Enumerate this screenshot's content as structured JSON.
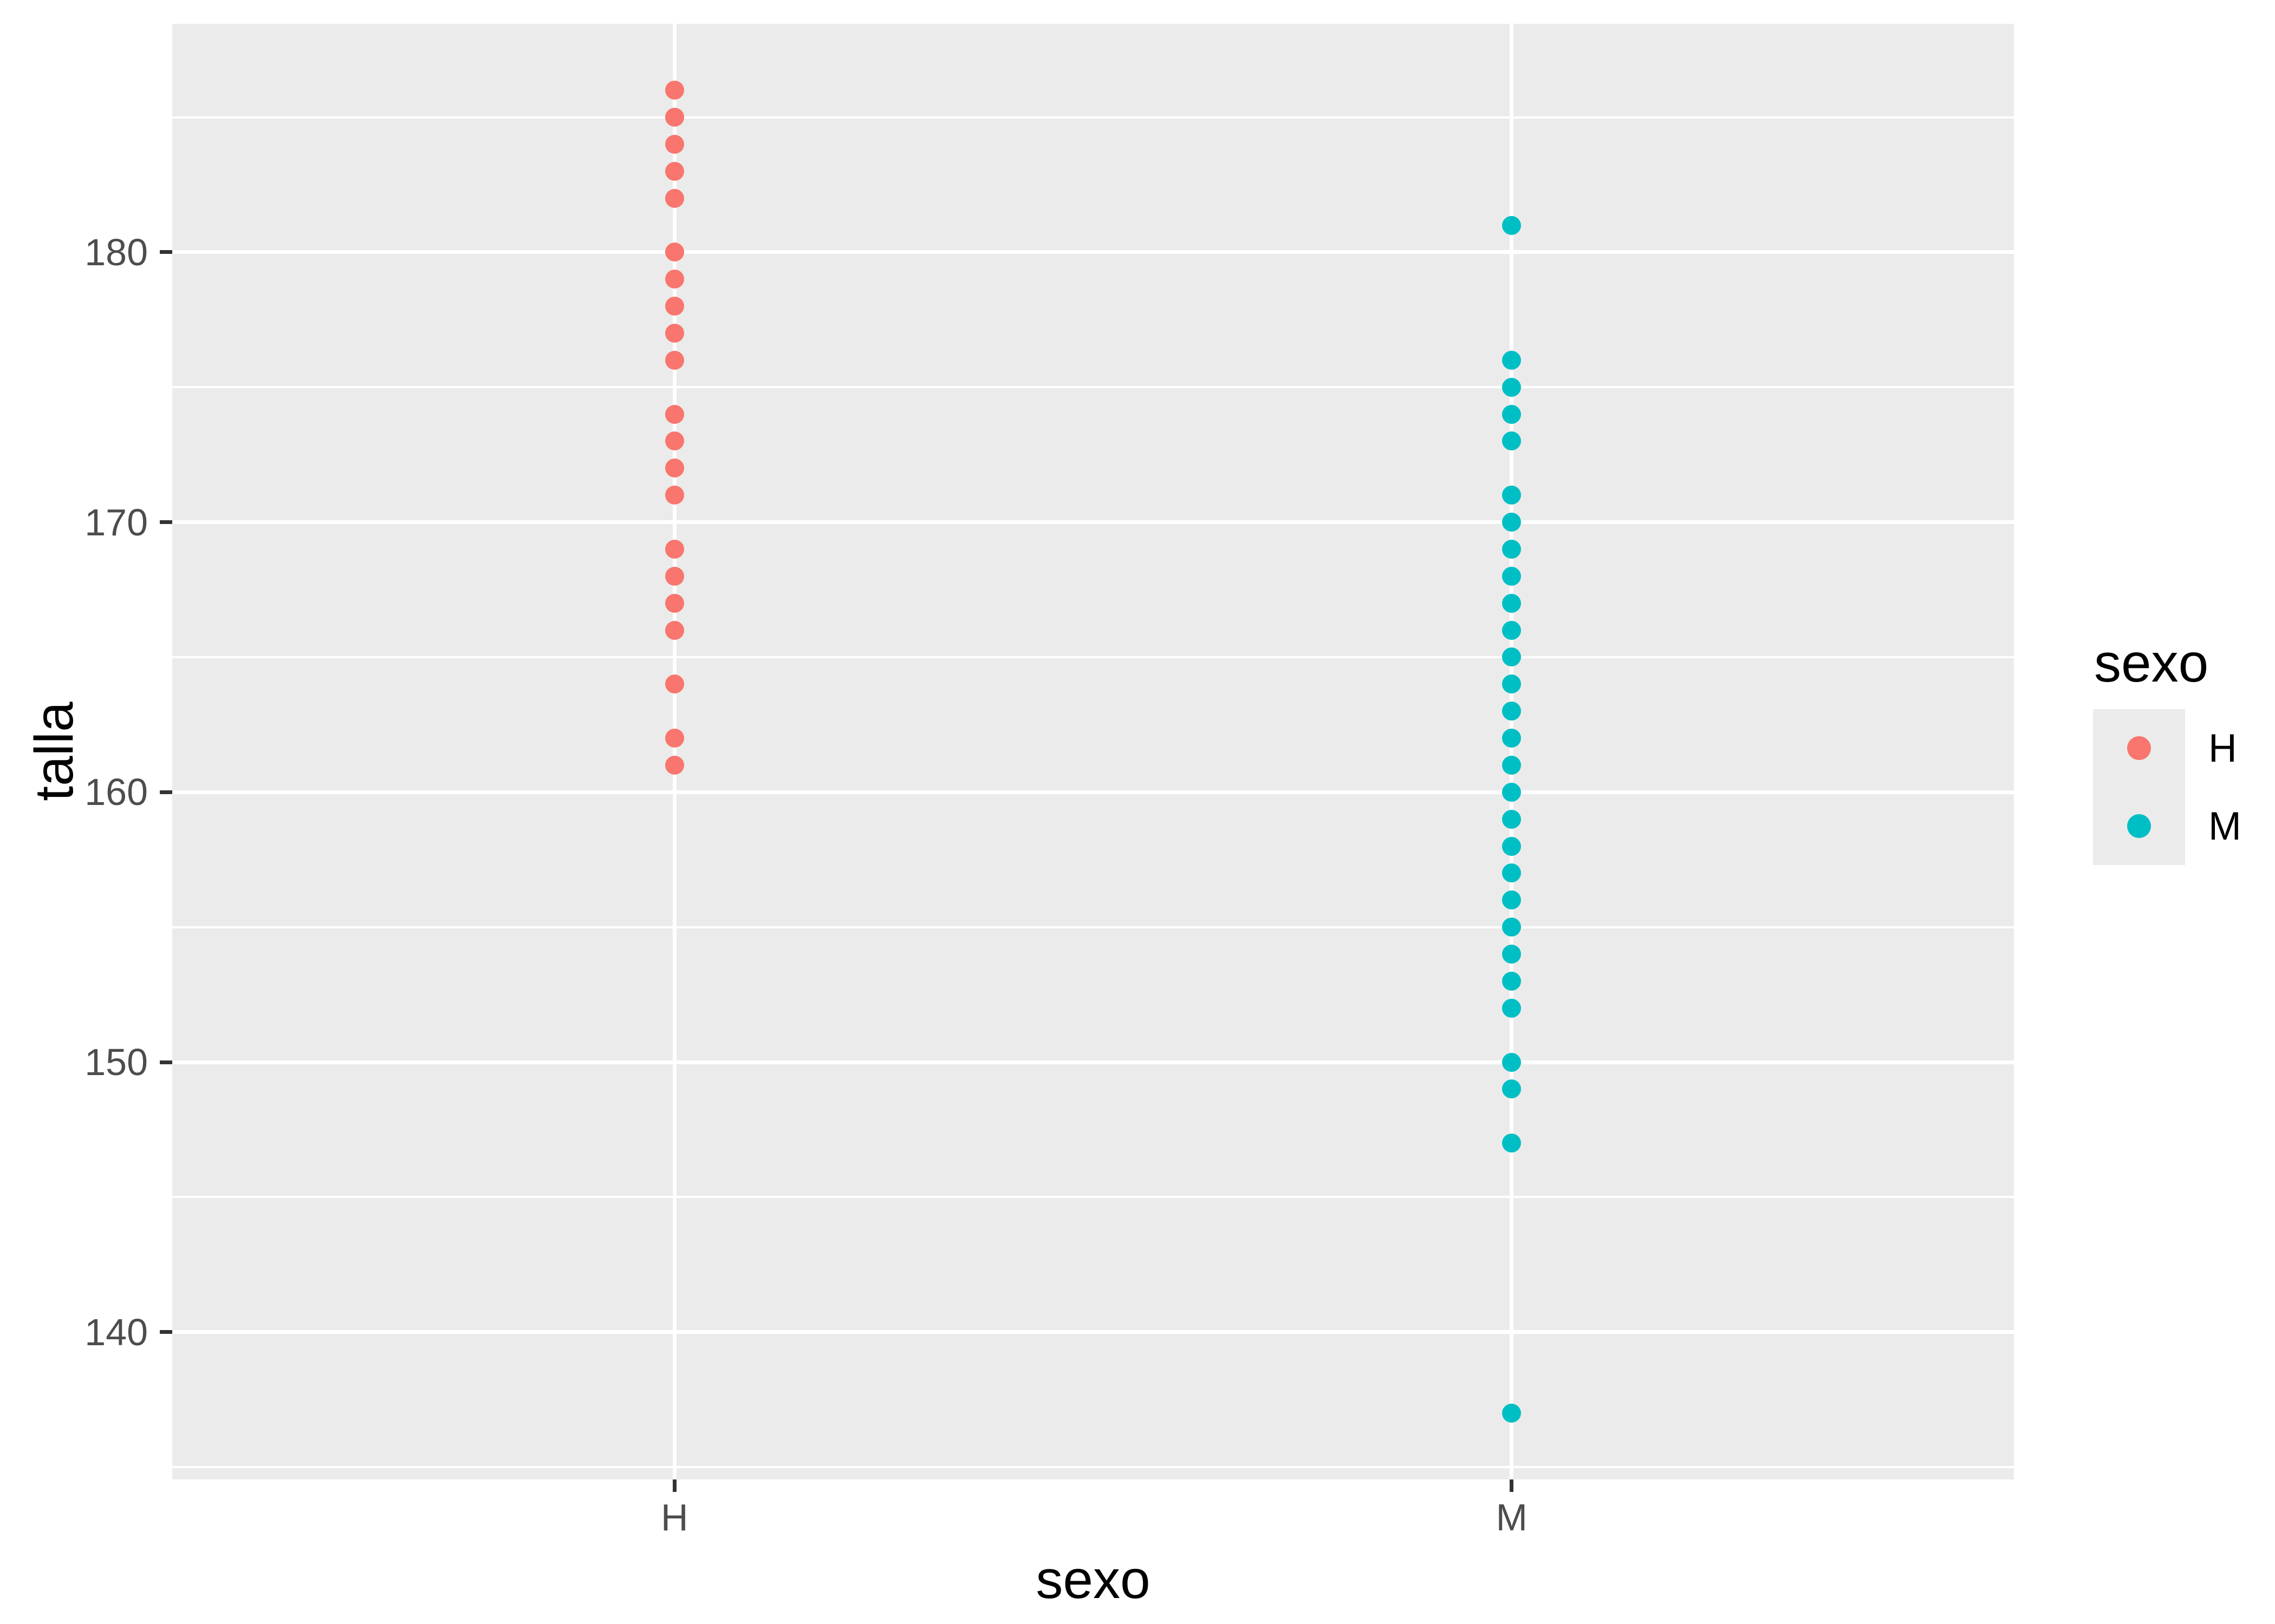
{
  "chart_data": {
    "type": "scatter",
    "title": "",
    "xlabel": "sexo",
    "ylabel": "talla",
    "categories": [
      "H",
      "M"
    ],
    "series": [
      {
        "name": "H",
        "color": "#F8766D",
        "x_category": "H",
        "values": [
          161,
          162,
          164,
          166,
          167,
          168,
          169,
          171,
          172,
          173,
          174,
          176,
          177,
          178,
          179,
          180,
          182,
          183,
          184,
          185,
          186
        ]
      },
      {
        "name": "M",
        "color": "#00BFC4",
        "x_category": "M",
        "values": [
          137,
          147,
          149,
          150,
          152,
          153,
          154,
          155,
          156,
          157,
          158,
          159,
          160,
          161,
          162,
          163,
          164,
          165,
          166,
          167,
          168,
          169,
          170,
          171,
          173,
          174,
          175,
          176,
          181
        ]
      }
    ],
    "x_axis": {
      "label": "sexo",
      "tick_labels": [
        "H",
        "M"
      ]
    },
    "y_axis": {
      "label": "talla",
      "major_ticks": [
        140,
        150,
        160,
        170,
        180
      ],
      "minor_gridlines": [
        135,
        145,
        155,
        165,
        175,
        185
      ],
      "ylim": [
        134.54,
        188.46
      ]
    },
    "grid": true,
    "legend": {
      "title": "sexo",
      "position": "right",
      "entries": [
        {
          "label": "H",
          "color": "#F8766D"
        },
        {
          "label": "M",
          "color": "#00BFC4"
        }
      ]
    },
    "style": {
      "panel_bg": "#EBEBEB",
      "grid_color": "#FFFFFF",
      "tick_color": "#333333",
      "axis_text_color": "#4D4D4D",
      "title_color": "#000000",
      "legend_key_bg": "#EBEBEB"
    }
  }
}
